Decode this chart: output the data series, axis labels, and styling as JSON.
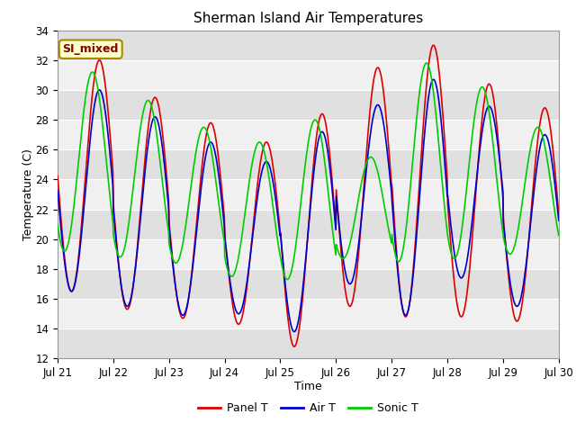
{
  "title": "Sherman Island Air Temperatures",
  "xlabel": "Time",
  "ylabel": "Temperature (C)",
  "ylim": [
    12,
    34
  ],
  "yticks": [
    12,
    14,
    16,
    18,
    20,
    22,
    24,
    26,
    28,
    30,
    32,
    34
  ],
  "xtick_labels": [
    "Jul 21",
    "Jul 22",
    "Jul 23",
    "Jul 24",
    "Jul 25",
    "Jul 26",
    "Jul 27",
    "Jul 28",
    "Jul 29",
    "Jul 30"
  ],
  "legend_labels": [
    "Panel T",
    "Air T",
    "Sonic T"
  ],
  "legend_colors": [
    "#dd0000",
    "#0000cc",
    "#00cc00"
  ],
  "annotation_text": "SI_mixed",
  "annotation_bg": "#ffffcc",
  "annotation_border": "#aa8800",
  "annotation_text_color": "#880000",
  "panel_color": "#dd0000",
  "air_color": "#0000cc",
  "sonic_color": "#00cc00",
  "fig_bg": "#ffffff",
  "plot_bg": "#f0f0f0",
  "band_light": "#f0f0f0",
  "band_dark": "#e0e0e0",
  "linewidth": 1.2
}
